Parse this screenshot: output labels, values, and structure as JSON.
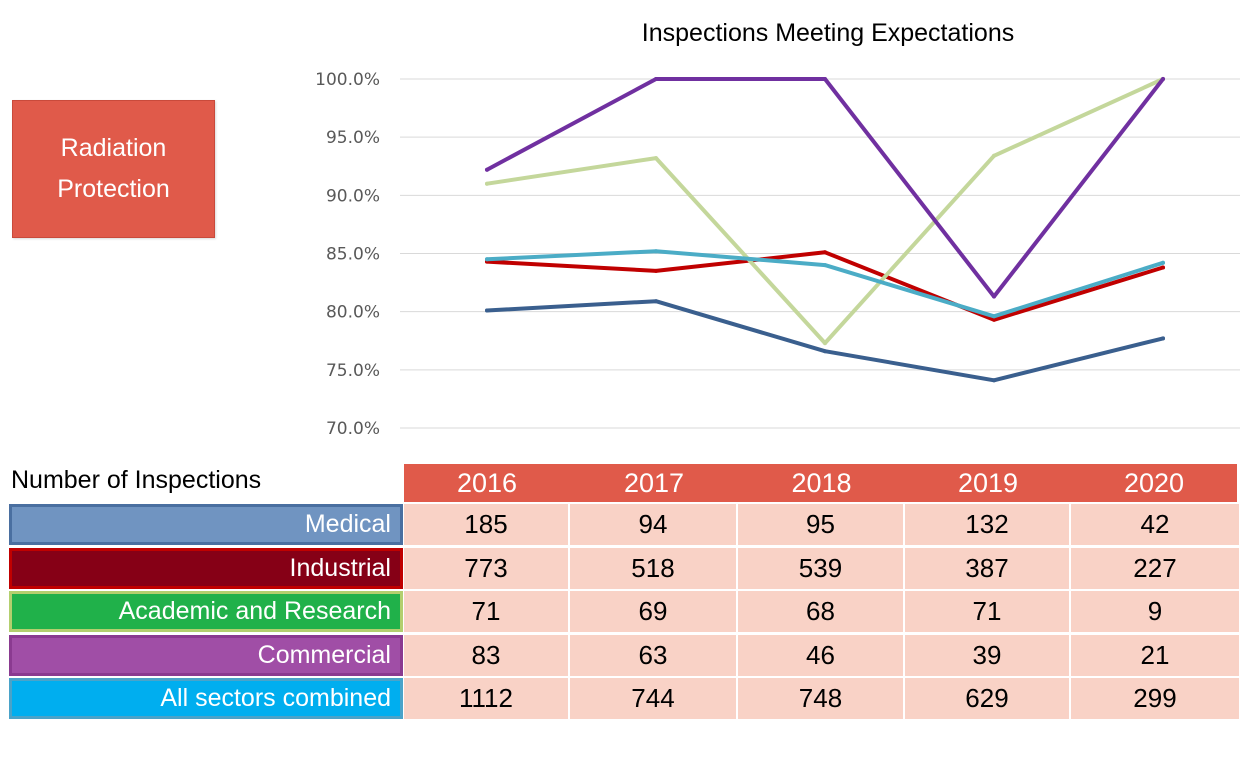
{
  "badge": {
    "line1": "Radiation",
    "line2": "Protection"
  },
  "chart_data": {
    "type": "line",
    "title": "Inspections Meeting Expectations",
    "xlabel": "",
    "ylabel": "",
    "categories": [
      "2016",
      "2017",
      "2018",
      "2019",
      "2020"
    ],
    "ylim": [
      70,
      100
    ],
    "yticks": [
      "70.0%",
      "75.0%",
      "80.0%",
      "85.0%",
      "90.0%",
      "95.0%",
      "100.0%"
    ],
    "grid": true,
    "series": [
      {
        "key": "medical",
        "color": "#3a5f8e",
        "values": [
          80.1,
          80.9,
          76.6,
          74.1,
          77.7
        ]
      },
      {
        "key": "industrial",
        "color": "#c00000",
        "values": [
          84.3,
          83.5,
          85.1,
          79.3,
          83.8
        ]
      },
      {
        "key": "academic",
        "color": "#c4d79b",
        "values": [
          91.0,
          93.2,
          77.3,
          93.4,
          100.0
        ]
      },
      {
        "key": "commercial",
        "color": "#7030a0",
        "values": [
          92.2,
          100.0,
          100.0,
          81.3,
          100.0
        ]
      },
      {
        "key": "all",
        "color": "#4bacc6",
        "values": [
          84.5,
          85.2,
          84.0,
          79.6,
          84.2
        ]
      }
    ]
  },
  "table": {
    "caption": "Number of Inspections",
    "years": [
      "2016",
      "2017",
      "2018",
      "2019",
      "2020"
    ],
    "rows": [
      {
        "label": "Medical",
        "color": "#7094c1",
        "border": "#4a6fa0",
        "values": [
          "185",
          "94",
          "95",
          "132",
          "42"
        ]
      },
      {
        "label": "Industrial",
        "color": "#860016",
        "border": "#c00000",
        "values": [
          "773",
          "518",
          "539",
          "387",
          "227"
        ]
      },
      {
        "label": "Academic and Research",
        "color": "#20b14a",
        "border": "#b3cf6e",
        "values": [
          "71",
          "69",
          "68",
          "71",
          "9"
        ]
      },
      {
        "label": "Commercial",
        "color": "#a04ea6",
        "border": "#8a3a90",
        "values": [
          "83",
          "63",
          "46",
          "39",
          "21"
        ]
      },
      {
        "label": "All sectors combined",
        "color": "#00aeef",
        "border": "#4aa3c9",
        "values": [
          "1112",
          "744",
          "748",
          "629",
          "299"
        ]
      }
    ]
  }
}
